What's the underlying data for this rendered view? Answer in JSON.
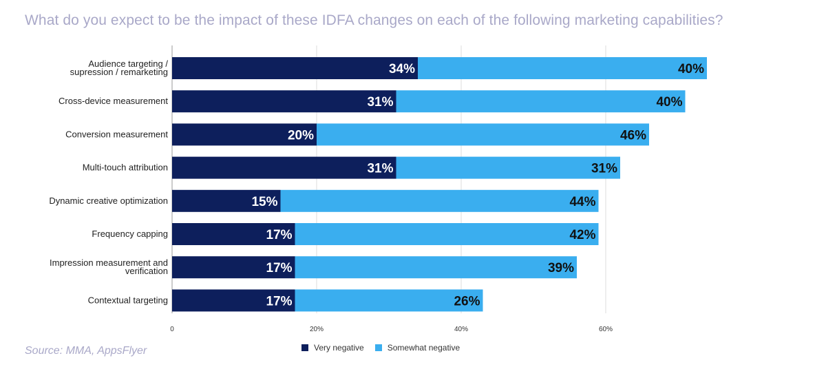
{
  "chart_data": {
    "type": "bar",
    "orientation": "horizontal",
    "stacked": true,
    "title": "What do you expect to be the impact of these IDFA changes on each of the following marketing capabilities?",
    "categories": [
      "Audience targeting / supression / remarketing",
      "Cross-device measurement",
      "Conversion measurement",
      "Multi-touch attribution",
      "Dynamic creative optimization",
      "Frequency capping",
      "Impression measurement and verification",
      "Contextual targeting"
    ],
    "series": [
      {
        "name": "Very negative",
        "color": "#0d1f5c",
        "values": [
          34,
          31,
          20,
          31,
          15,
          17,
          17,
          17
        ],
        "labels": [
          "34%",
          "31%",
          "20%",
          "31%",
          "15%",
          "17%",
          "17%",
          "17%"
        ],
        "label_color": "#ffffff"
      },
      {
        "name": "Somewhat negative",
        "color": "#3aaeef",
        "values": [
          40,
          40,
          46,
          31,
          44,
          42,
          39,
          26
        ],
        "labels": [
          "40%",
          "40%",
          "46%",
          "31%",
          "44%",
          "42%",
          "39%",
          "26%"
        ],
        "label_color": "#111111"
      }
    ],
    "xlim": [
      0,
      80
    ],
    "xticks": [
      0,
      20,
      40,
      60
    ],
    "xtick_labels": [
      "0",
      "20%",
      "40%",
      "60%"
    ],
    "grid": true,
    "legend_position": "bottom"
  },
  "source": "Source: MMA, AppsFlyer"
}
